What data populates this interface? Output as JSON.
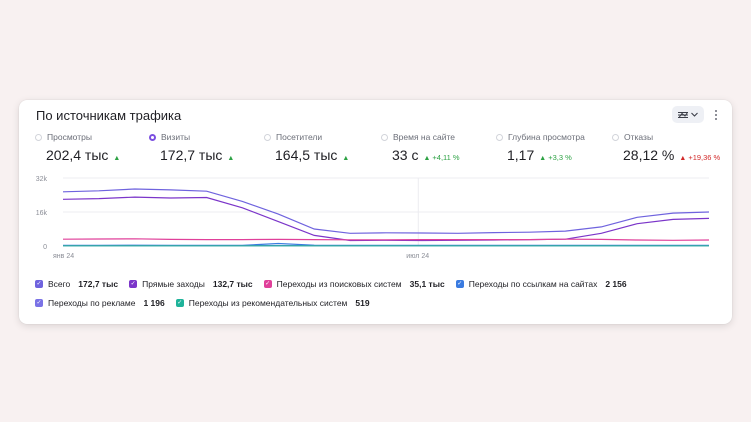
{
  "widget": {
    "title": "По источникам трафика",
    "view_icon": "chart-settings-icon",
    "menu_icon": "kebab-menu-icon"
  },
  "metrics": [
    {
      "label": "Просмотры",
      "value": "202,4 тыс",
      "trend": "up",
      "delta": "",
      "selected": false
    },
    {
      "label": "Визиты",
      "value": "172,7 тыс",
      "trend": "up",
      "delta": "",
      "selected": true
    },
    {
      "label": "Посетители",
      "value": "164,5 тыс",
      "trend": "up",
      "delta": "",
      "selected": false
    },
    {
      "label": "Время на сайте",
      "value": "33 с",
      "trend": "up",
      "delta": "+4,11 %",
      "selected": false
    },
    {
      "label": "Глубина просмотра",
      "value": "1,17",
      "trend": "up",
      "delta": "+3,3 %",
      "selected": false
    },
    {
      "label": "Отказы",
      "value": "28,12 %",
      "trend": "up-bad",
      "delta": "+19,36 %",
      "selected": false
    }
  ],
  "legend": [
    {
      "name": "Всего",
      "value": "172,7 тыс",
      "color": "#6f63de"
    },
    {
      "name": "Прямые заходы",
      "value": "132,7 тыс",
      "color": "#7b35c9"
    },
    {
      "name": "Переходы из поисковых систем",
      "value": "35,1 тыс",
      "color": "#e0409a"
    },
    {
      "name": "Переходы по ссылкам на сайтах",
      "value": "2 156",
      "color": "#3a7be0"
    },
    {
      "name": "Переходы по рекламе",
      "value": "1 196",
      "color": "#7a72e6"
    },
    {
      "name": "Переходы из рекомендательных систем",
      "value": "519",
      "color": "#1fb39a"
    }
  ],
  "chart_data": {
    "type": "line",
    "x": [
      0,
      1,
      2,
      3,
      4,
      5,
      6,
      7,
      8,
      9,
      10,
      11,
      12,
      13,
      14,
      15,
      16,
      17,
      18
    ],
    "xtick_labels": [
      "янв 24",
      "июл 24"
    ],
    "ytick_labels": [
      "32k",
      "16k",
      "0"
    ],
    "ylim": [
      0,
      32000
    ],
    "grid": true,
    "legend_position": "bottom",
    "series": [
      {
        "name": "Всего",
        "color": "#6f63de",
        "values": [
          25500,
          26000,
          26800,
          26400,
          25800,
          21000,
          15000,
          8000,
          6000,
          6200,
          6100,
          6000,
          6300,
          6500,
          7000,
          9000,
          13500,
          15500,
          16000
        ]
      },
      {
        "name": "Прямые заходы",
        "color": "#7b35c9",
        "values": [
          22000,
          22300,
          23000,
          22600,
          22800,
          18000,
          11500,
          5000,
          2600,
          2700,
          2600,
          2700,
          2800,
          3000,
          3200,
          6000,
          10500,
          12500,
          13000
        ]
      },
      {
        "name": "Переходы из поисковых систем",
        "color": "#e0409a",
        "values": [
          3200,
          3300,
          3400,
          3100,
          3000,
          3000,
          3100,
          3000,
          2900,
          2900,
          3000,
          3000,
          3000,
          3000,
          3200,
          3100,
          2800,
          2700,
          2800
        ]
      },
      {
        "name": "Переходы по ссылкам на сайтах",
        "color": "#3a7be0",
        "values": [
          300,
          300,
          400,
          300,
          300,
          300,
          1200,
          400,
          300,
          300,
          300,
          300,
          300,
          300,
          300,
          300,
          300,
          300,
          300
        ]
      },
      {
        "name": "Переходы по рекламе",
        "color": "#7a72e6",
        "values": [
          200,
          200,
          200,
          200,
          200,
          200,
          200,
          200,
          200,
          200,
          200,
          200,
          200,
          200,
          200,
          200,
          200,
          200,
          200
        ]
      },
      {
        "name": "Переходы из рекомендательных систем",
        "color": "#1fb39a",
        "values": [
          100,
          100,
          100,
          100,
          100,
          100,
          100,
          100,
          100,
          100,
          100,
          100,
          100,
          100,
          100,
          100,
          100,
          100,
          100
        ]
      }
    ]
  }
}
